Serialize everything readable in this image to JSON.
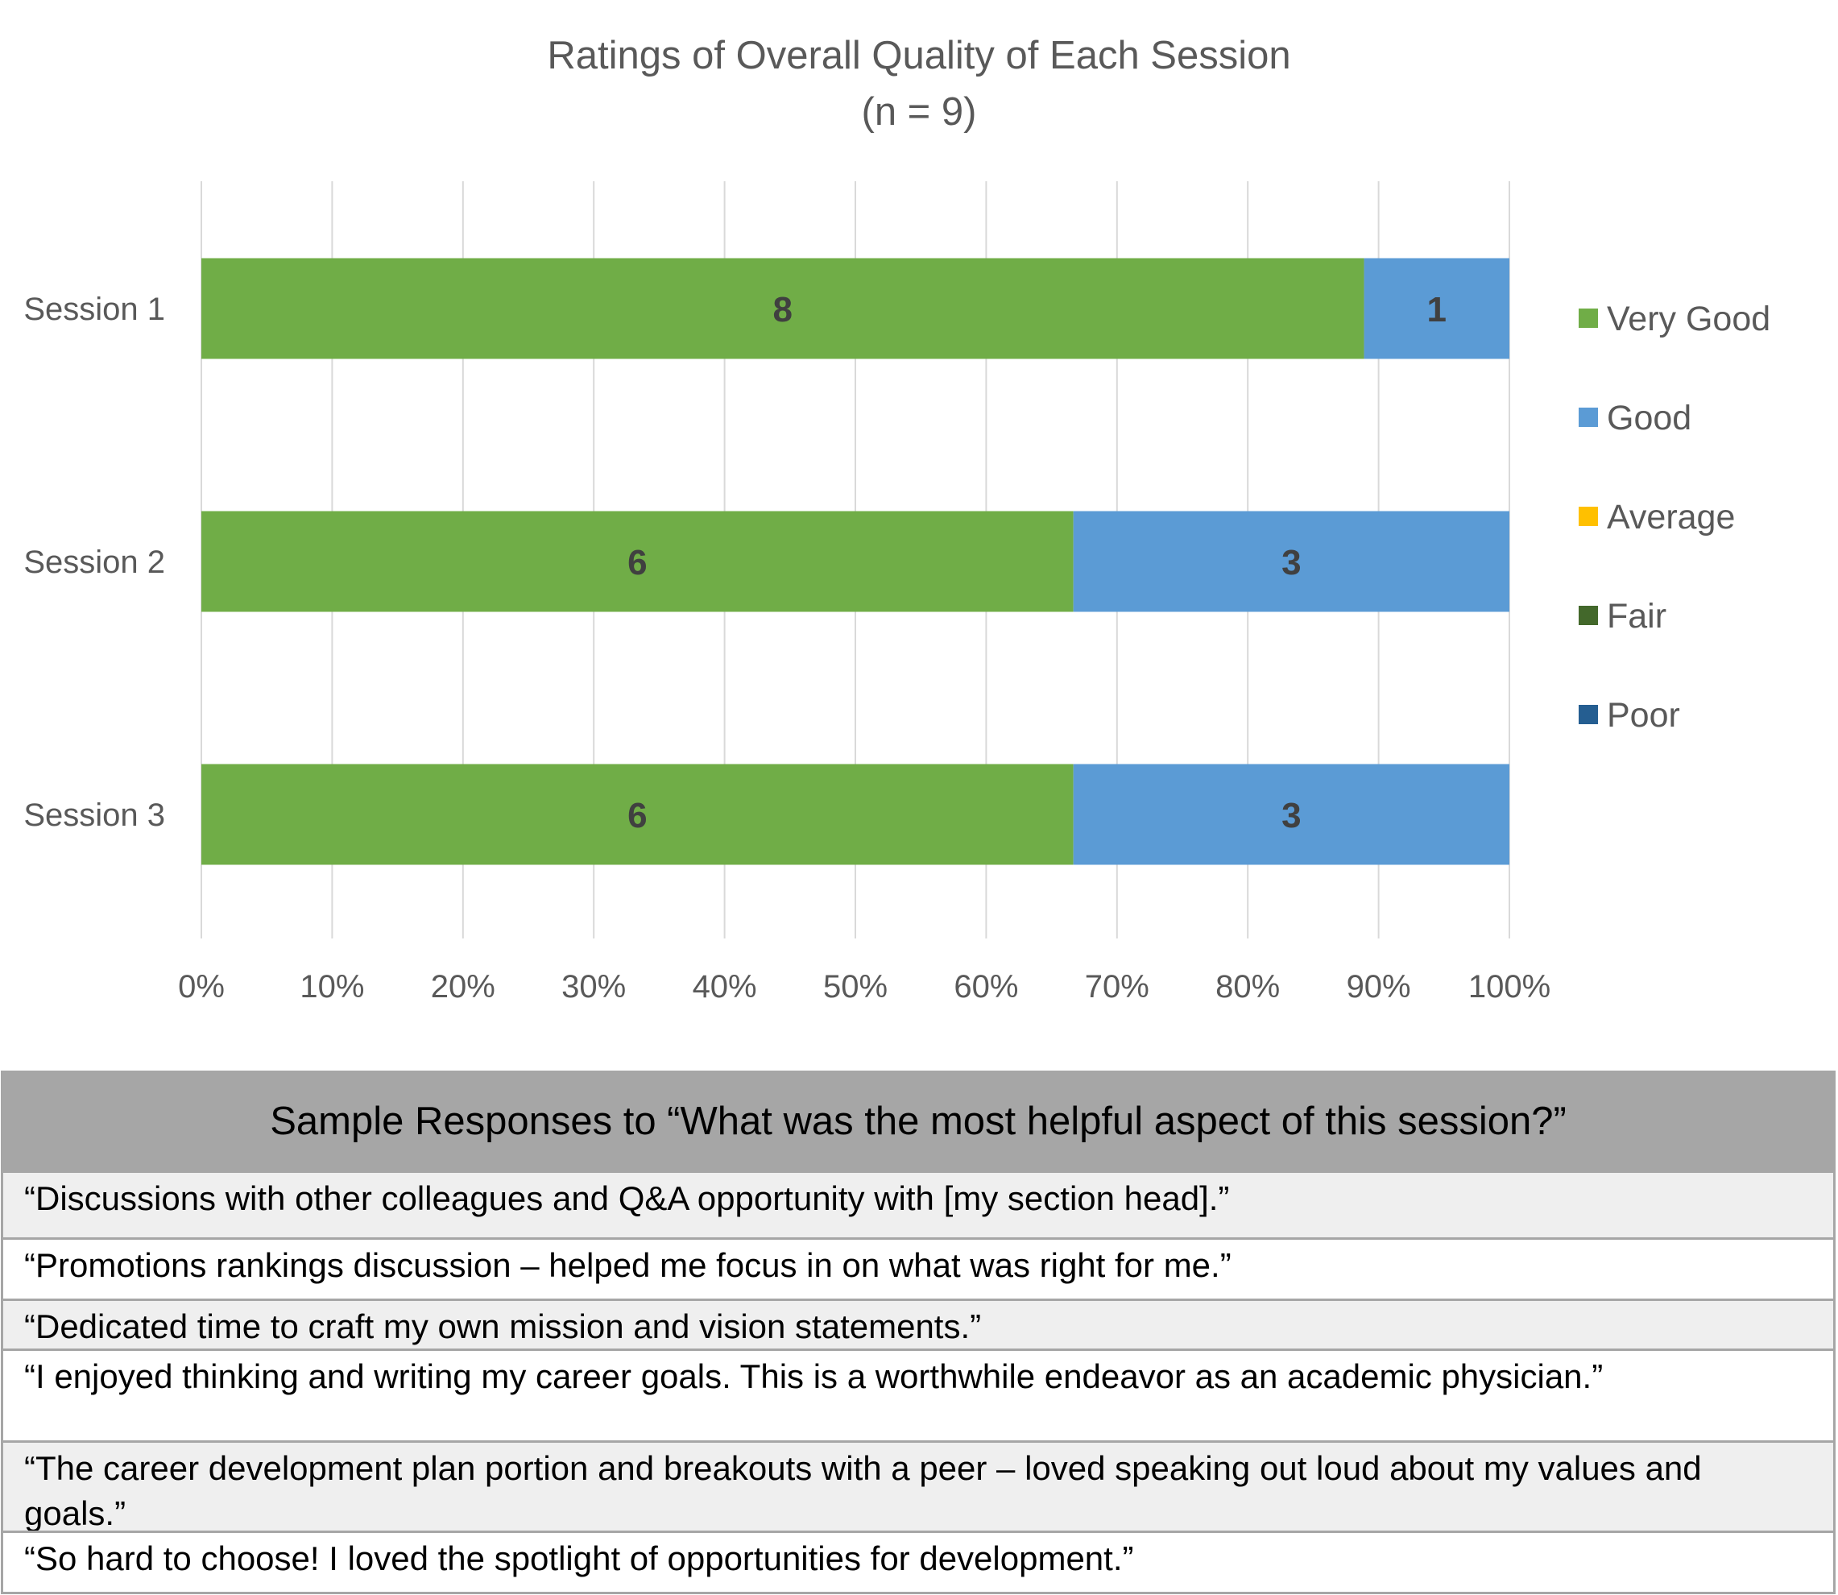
{
  "chart_data": {
    "type": "bar",
    "orientation": "horizontal",
    "stacked": "percent",
    "title": "Ratings of Overall Quality of Each Session",
    "subtitle": "(n = 9)",
    "categories": [
      "Session 1",
      "Session 2",
      "Session 3"
    ],
    "series": [
      {
        "name": "Very Good",
        "color": "#70ad47",
        "values": [
          8,
          6,
          6
        ]
      },
      {
        "name": "Good",
        "color": "#5b9bd5",
        "values": [
          1,
          3,
          3
        ]
      },
      {
        "name": "Average",
        "color": "#ffc000",
        "values": [
          0,
          0,
          0
        ]
      },
      {
        "name": "Fair",
        "color": "#43682b",
        "values": [
          0,
          0,
          0
        ]
      },
      {
        "name": "Poor",
        "color": "#255e91",
        "values": [
          0,
          0,
          0
        ]
      }
    ],
    "x_ticks": [
      "0%",
      "10%",
      "20%",
      "30%",
      "40%",
      "50%",
      "60%",
      "70%",
      "80%",
      "90%",
      "100%"
    ],
    "xlim": [
      0,
      100
    ],
    "grid": true,
    "legend_position": "right"
  },
  "table": {
    "title": "Sample Responses to “What was the most helpful aspect of this session?”",
    "rows": [
      "“Discussions with other colleagues and Q&A opportunity with [my section head].”",
      "“Promotions rankings discussion – helped me focus in on what was right for me.”",
      "“Dedicated time to craft my own mission and vision statements.”",
      "“I enjoyed thinking and writing my career goals. This is a worthwhile endeavor as an academic physician.”",
      "“The career development plan portion and breakouts with a peer – loved speaking out loud about my values and goals.”",
      "“So hard to choose!  I loved the spotlight of opportunities for development.”"
    ]
  }
}
